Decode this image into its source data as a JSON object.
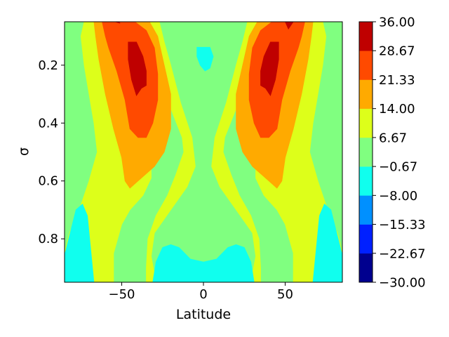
{
  "chart_data": {
    "type": "contourf",
    "title": "",
    "xlabel": "Latitude",
    "ylabel": "σ",
    "xlim": [
      -85,
      85
    ],
    "ylim": [
      0.95,
      0.05
    ],
    "y_inverted": true,
    "x_ticks": [
      -50,
      0,
      50
    ],
    "x_tick_labels": [
      "−50",
      "0",
      "50"
    ],
    "y_ticks": [
      0.2,
      0.4,
      0.6,
      0.8
    ],
    "y_tick_labels": [
      "0.2",
      "0.4",
      "0.6",
      "0.8"
    ],
    "colorbar": {
      "levels": [
        -30.0,
        -22.67,
        -15.33,
        -8.0,
        -0.67,
        6.67,
        14.0,
        21.33,
        28.67,
        36.0
      ],
      "tick_labels": [
        "36.00",
        "28.67",
        "21.33",
        "14.00",
        "6.67",
        "−0.67",
        "−8.00",
        "−15.33",
        "−22.67",
        "−30.00"
      ],
      "colors": [
        "#00008f",
        "#0020ff",
        "#0090ff",
        "#10ffee",
        "#80ff80",
        "#ddff1a",
        "#ffaa00",
        "#ff4a00",
        "#bf0000"
      ],
      "colormap": "jet"
    },
    "regions": [
      {
        "range": [
          6.67,
          14.0
        ],
        "polygons": [
          [
            [
              -73,
              0.05
            ],
            [
              -59,
              0.05
            ],
            [
              -43,
              0.26
            ],
            [
              -40,
              0.35
            ],
            [
              -32,
              0.55
            ],
            [
              -32,
              0.59
            ],
            [
              -37,
              0.65
            ],
            [
              -45,
              0.7
            ],
            [
              -50,
              0.75
            ],
            [
              -55,
              0.85
            ],
            [
              -55,
              0.95
            ],
            [
              -86,
              0.95
            ],
            [
              -86,
              0.87
            ],
            [
              -82,
              0.78
            ],
            [
              -76,
              0.7
            ],
            [
              -70,
              0.6
            ],
            [
              -65,
              0.5
            ],
            [
              -67,
              0.4
            ],
            [
              -70,
              0.3
            ],
            [
              -73,
              0.2
            ],
            [
              -75,
              0.1
            ]
          ],
          [
            [
              73,
              0.05
            ],
            [
              59,
              0.05
            ],
            [
              43,
              0.26
            ],
            [
              40,
              0.35
            ],
            [
              32,
              0.55
            ],
            [
              32,
              0.59
            ],
            [
              37,
              0.65
            ],
            [
              45,
              0.7
            ],
            [
              50,
              0.75
            ],
            [
              55,
              0.85
            ],
            [
              55,
              0.95
            ],
            [
              86,
              0.95
            ],
            [
              86,
              0.87
            ],
            [
              82,
              0.78
            ],
            [
              76,
              0.7
            ],
            [
              70,
              0.6
            ],
            [
              65,
              0.5
            ],
            [
              67,
              0.4
            ],
            [
              70,
              0.3
            ],
            [
              73,
              0.2
            ],
            [
              75,
              0.1
            ]
          ],
          [
            [
              -27,
              0.05
            ],
            [
              -33,
              0.05
            ],
            [
              -28,
              0.25
            ],
            [
              -20,
              0.35
            ],
            [
              -13,
              0.45
            ],
            [
              -12,
              0.5
            ],
            [
              -17,
              0.58
            ],
            [
              -22,
              0.65
            ],
            [
              -29,
              0.72
            ],
            [
              -34,
              0.8
            ],
            [
              -35,
              0.9
            ],
            [
              -35,
              0.95
            ],
            [
              -29,
              0.95
            ],
            [
              -32,
              0.86
            ],
            [
              -30,
              0.78
            ],
            [
              -20,
              0.7
            ],
            [
              -10,
              0.62
            ],
            [
              -5,
              0.55
            ],
            [
              -7,
              0.45
            ],
            [
              -14,
              0.33
            ],
            [
              -20,
              0.2
            ],
            [
              -24,
              0.12
            ]
          ],
          [
            [
              27,
              0.05
            ],
            [
              33,
              0.05
            ],
            [
              28,
              0.25
            ],
            [
              20,
              0.35
            ],
            [
              13,
              0.45
            ],
            [
              12,
              0.5
            ],
            [
              17,
              0.58
            ],
            [
              22,
              0.65
            ],
            [
              29,
              0.72
            ],
            [
              34,
              0.8
            ],
            [
              35,
              0.9
            ],
            [
              35,
              0.95
            ],
            [
              29,
              0.95
            ],
            [
              32,
              0.86
            ],
            [
              30,
              0.78
            ],
            [
              20,
              0.7
            ],
            [
              10,
              0.62
            ],
            [
              5,
              0.55
            ],
            [
              7,
              0.45
            ],
            [
              14,
              0.33
            ],
            [
              20,
              0.2
            ],
            [
              24,
              0.12
            ]
          ]
        ]
      },
      {
        "range": [
          14.0,
          21.33
        ],
        "polygons": [
          [
            [
              -67,
              0.05
            ],
            [
              -33,
              0.05
            ],
            [
              -28,
              0.1
            ],
            [
              -24,
              0.2
            ],
            [
              -20,
              0.3
            ],
            [
              -20,
              0.42
            ],
            [
              -24,
              0.5
            ],
            [
              -30,
              0.55
            ],
            [
              -40,
              0.6
            ],
            [
              -45,
              0.625
            ],
            [
              -48,
              0.6
            ],
            [
              -50,
              0.52
            ],
            [
              -55,
              0.42
            ],
            [
              -60,
              0.3
            ],
            [
              -64,
              0.18
            ],
            [
              -66,
              0.1
            ]
          ],
          [
            [
              67,
              0.05
            ],
            [
              33,
              0.05
            ],
            [
              28,
              0.1
            ],
            [
              24,
              0.2
            ],
            [
              20,
              0.3
            ],
            [
              20,
              0.42
            ],
            [
              24,
              0.5
            ],
            [
              30,
              0.55
            ],
            [
              40,
              0.6
            ],
            [
              45,
              0.625
            ],
            [
              48,
              0.6
            ],
            [
              50,
              0.52
            ],
            [
              55,
              0.42
            ],
            [
              60,
              0.3
            ],
            [
              64,
              0.18
            ],
            [
              66,
              0.1
            ]
          ]
        ]
      },
      {
        "range": [
          21.33,
          28.67
        ],
        "polygons": [
          [
            [
              -62,
              0.05
            ],
            [
              -42,
              0.05
            ],
            [
              -35,
              0.08
            ],
            [
              -30,
              0.14
            ],
            [
              -28,
              0.23
            ],
            [
              -28,
              0.32
            ],
            [
              -31,
              0.4
            ],
            [
              -35,
              0.45
            ],
            [
              -40,
              0.45
            ],
            [
              -45,
              0.42
            ],
            [
              -48,
              0.32
            ],
            [
              -53,
              0.22
            ],
            [
              -58,
              0.14
            ],
            [
              -60,
              0.1
            ]
          ],
          [
            [
              62,
              0.05
            ],
            [
              42,
              0.05
            ],
            [
              35,
              0.08
            ],
            [
              30,
              0.14
            ],
            [
              28,
              0.23
            ],
            [
              28,
              0.32
            ],
            [
              31,
              0.4
            ],
            [
              35,
              0.45
            ],
            [
              40,
              0.45
            ],
            [
              45,
              0.42
            ],
            [
              48,
              0.32
            ],
            [
              53,
              0.22
            ],
            [
              58,
              0.14
            ],
            [
              60,
              0.1
            ]
          ]
        ]
      },
      {
        "range": [
          28.67,
          36.0
        ],
        "polygons": [
          [
            [
              -46,
              0.12
            ],
            [
              -41,
              0.12
            ],
            [
              -37,
              0.17
            ],
            [
              -35,
              0.22
            ],
            [
              -35,
              0.27
            ],
            [
              -38,
              0.28
            ],
            [
              -41,
              0.305
            ],
            [
              -44,
              0.25
            ],
            [
              -46,
              0.18
            ]
          ],
          [
            [
              46,
              0.12
            ],
            [
              41,
              0.12
            ],
            [
              37,
              0.17
            ],
            [
              35,
              0.22
            ],
            [
              35,
              0.27
            ],
            [
              38,
              0.28
            ],
            [
              41,
              0.305
            ],
            [
              44,
              0.25
            ],
            [
              46,
              0.18
            ]
          ],
          [
            [
              -54,
              0.05
            ],
            [
              -52,
              0.05
            ],
            [
              -51,
              0.055
            ]
          ],
          [
            [
              50,
              0.05
            ],
            [
              55,
              0.05
            ],
            [
              52,
              0.075
            ]
          ]
        ]
      },
      {
        "range": [
          -8.0,
          -0.67
        ],
        "polygons": [
          [
            [
              -4,
              0.138
            ],
            [
              4,
              0.138
            ],
            [
              6,
              0.17
            ],
            [
              4,
              0.21
            ],
            [
              1,
              0.22
            ],
            [
              -2,
              0.2
            ],
            [
              -4,
              0.17
            ]
          ],
          [
            [
              -86,
              0.95
            ],
            [
              -86,
              0.88
            ],
            [
              -82,
              0.79
            ],
            [
              -78,
              0.7
            ],
            [
              -74,
              0.68
            ],
            [
              -71,
              0.72
            ],
            [
              -67,
              0.95
            ]
          ],
          [
            [
              86,
              0.95
            ],
            [
              86,
              0.88
            ],
            [
              82,
              0.79
            ],
            [
              78,
              0.7
            ],
            [
              74,
              0.68
            ],
            [
              71,
              0.72
            ],
            [
              67,
              0.95
            ]
          ],
          [
            [
              -31,
              0.95
            ],
            [
              -29,
              0.88
            ],
            [
              -25,
              0.83
            ],
            [
              -20,
              0.82
            ],
            [
              -15,
              0.83
            ],
            [
              -8,
              0.87
            ],
            [
              0,
              0.88
            ],
            [
              8,
              0.87
            ],
            [
              15,
              0.83
            ],
            [
              20,
              0.82
            ],
            [
              25,
              0.83
            ],
            [
              29,
              0.88
            ],
            [
              31,
              0.95
            ]
          ]
        ]
      }
    ]
  }
}
